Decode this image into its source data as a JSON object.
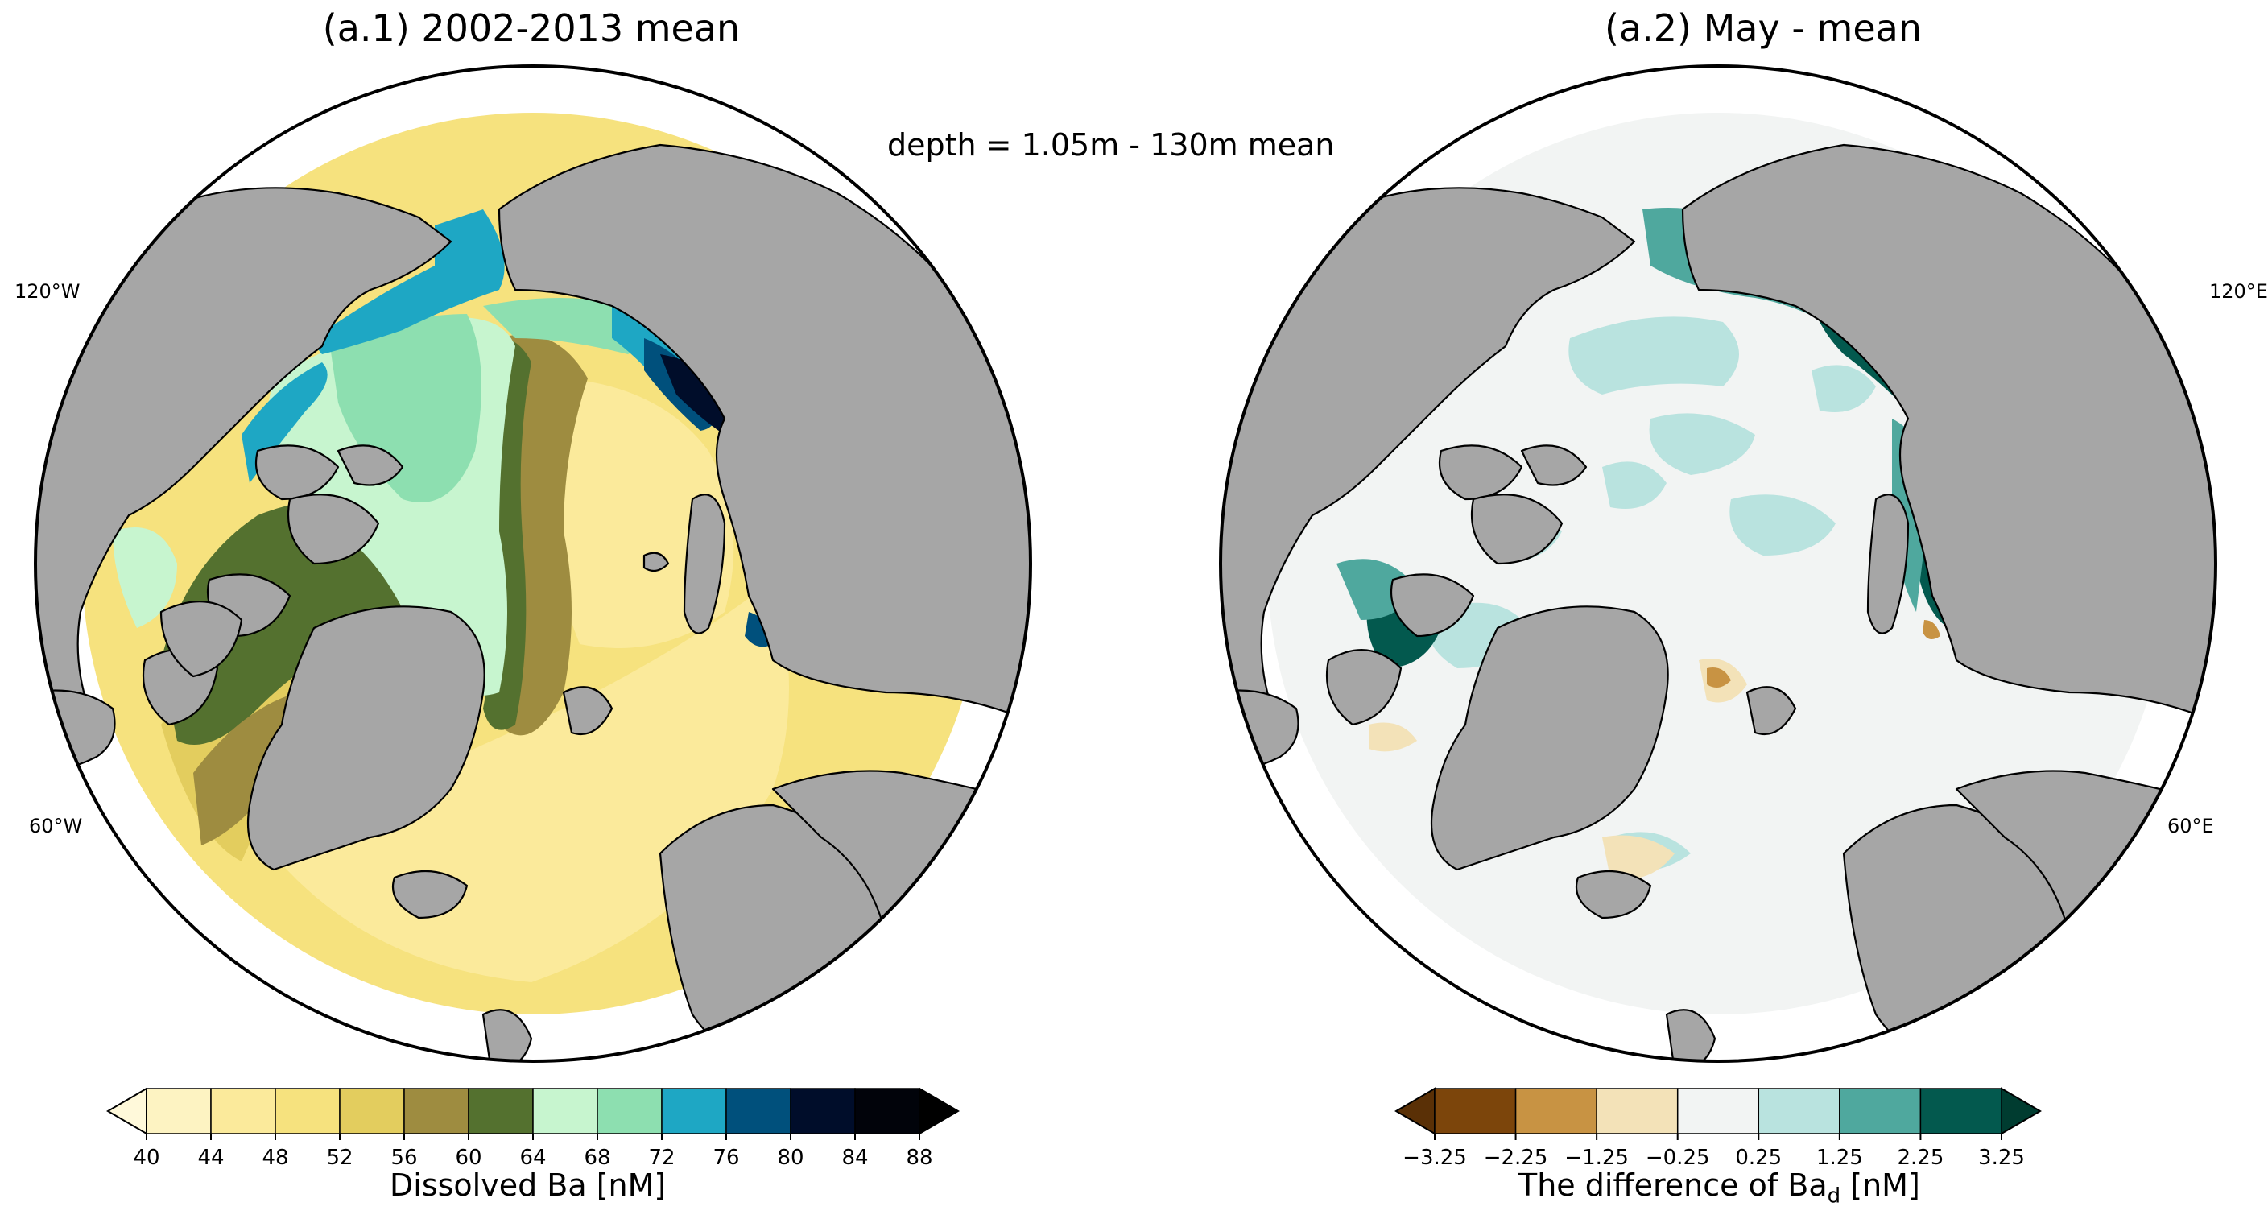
{
  "figure": {
    "depth_note": "depth = 1.05m - 130m mean"
  },
  "chart_data": [
    {
      "type": "heatmap",
      "title": "(a.1) 2002-2013 mean",
      "projection": "north-polar-stereographic",
      "longitude_labels": [
        "120°W",
        "60°W"
      ],
      "colorbar": {
        "label": "Dissolved Ba [nM]",
        "extend": "both",
        "ticks": [
          "40",
          "44",
          "48",
          "52",
          "56",
          "60",
          "64",
          "68",
          "72",
          "76",
          "80",
          "84",
          "88"
        ],
        "levels": [
          40,
          44,
          48,
          52,
          56,
          60,
          64,
          68,
          72,
          76,
          80,
          84,
          88
        ],
        "colors": [
          "#fdf3c2",
          "#fbea9b",
          "#f6e27e",
          "#e3cd5e",
          "#9e8c40",
          "#54712f",
          "#c7f5cf",
          "#8ddfb0",
          "#1ea7c4",
          "#00507c",
          "#000d2a",
          "#01030a"
        ],
        "under_color": "#fff9da",
        "over_color": "#000000"
      }
    },
    {
      "type": "heatmap",
      "title": "(a.2) May - mean",
      "projection": "north-polar-stereographic",
      "longitude_labels": [
        "120°E",
        "60°E"
      ],
      "colorbar": {
        "label": "The difference of Ba",
        "label_subscript": "d",
        "label_unit": " [nM]",
        "extend": "both",
        "ticks": [
          "−3.25",
          "−2.25",
          "−1.25",
          "−0.25",
          "0.25",
          "1.25",
          "2.25",
          "3.25"
        ],
        "levels": [
          -3.25,
          -2.25,
          -1.25,
          -0.25,
          0.25,
          1.25,
          2.25,
          3.25
        ],
        "colors": [
          "#7c450b",
          "#c89343",
          "#f3e2b8",
          "#f2f4f3",
          "#b9e3df",
          "#4fa89e",
          "#03594e"
        ],
        "under_color": "#5a3006",
        "over_color": "#003c30"
      }
    }
  ]
}
